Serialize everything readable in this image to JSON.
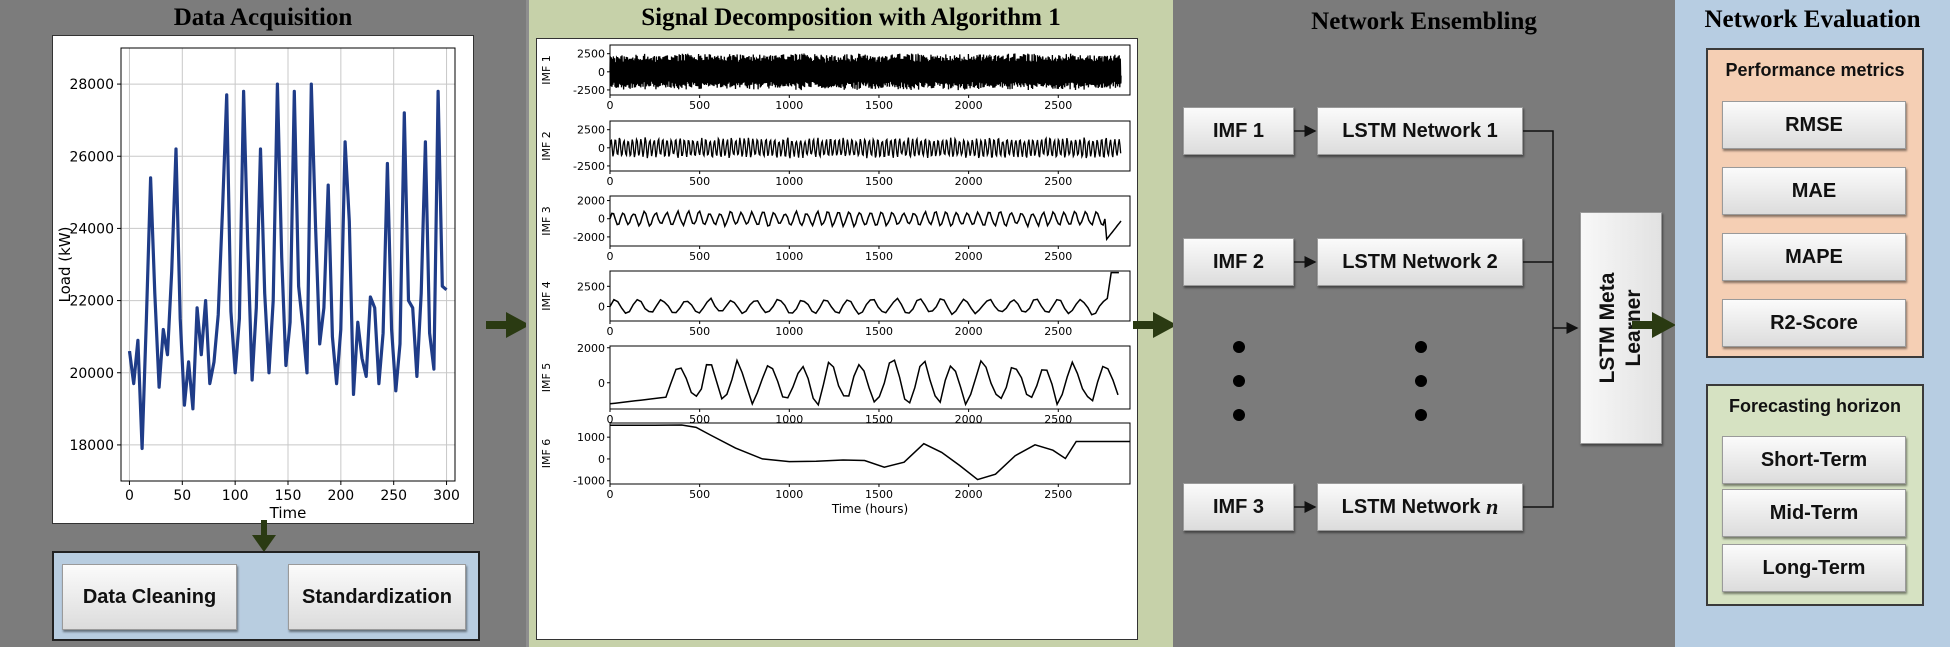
{
  "panels": {
    "acquisition": {
      "title": "Data Acquisition"
    },
    "decomposition": {
      "title": "Signal Decomposition with Algorithm 1"
    },
    "ensembling": {
      "title": "Network Ensembling"
    },
    "evaluation": {
      "title": "Network Evaluation"
    }
  },
  "preprocessing": {
    "cleaning": "Data Cleaning",
    "standardization": "Standardization"
  },
  "ensemble": {
    "imf_labels": [
      "IMF 1",
      "IMF 2",
      "IMF 3"
    ],
    "lstm_labels": [
      "LSTM Network 1",
      "LSTM Network 2",
      "LSTM Network "
    ],
    "lstm_last_suffix": "n",
    "meta_line1": "LSTM Meta",
    "meta_line2": "Learner"
  },
  "evaluation": {
    "metrics_title": "Performance metrics",
    "metrics": [
      "RMSE",
      "MAE",
      "MAPE",
      "R2-Score"
    ],
    "horizon_title": "Forecasting horizon",
    "horizons": [
      "Short-Term",
      "Mid-Term",
      "Long-Term"
    ]
  },
  "colors": {
    "load_line": "#1f3c88",
    "arrow": "#2a3a12"
  },
  "chart_data": [
    {
      "type": "line",
      "xlabel": "Time",
      "ylabel": "Load (kW)",
      "xlim": [
        -8,
        308
      ],
      "ylim": [
        17000,
        29000
      ],
      "xticks": [
        0,
        50,
        100,
        150,
        200,
        250,
        300
      ],
      "yticks": [
        18000,
        20000,
        22000,
        24000,
        26000,
        28000
      ],
      "grid": true,
      "series": [
        {
          "x": [
            0,
            4,
            8,
            12,
            16,
            20,
            24,
            28,
            32,
            36,
            40,
            44,
            48,
            52,
            56,
            60,
            64,
            68,
            72,
            76,
            80,
            84,
            88,
            92,
            96,
            100,
            104,
            108,
            112,
            116,
            120,
            124,
            128,
            132,
            136,
            140,
            144,
            148,
            152,
            156,
            160,
            164,
            168,
            172,
            176,
            180,
            184,
            188,
            192,
            196,
            200,
            204,
            208,
            212,
            216,
            220,
            224,
            228,
            232,
            236,
            240,
            244,
            248,
            252,
            256,
            260,
            264,
            268,
            272,
            276,
            280,
            284,
            288,
            292,
            296,
            300
          ],
          "y": [
            20600,
            19700,
            20900,
            17900,
            21500,
            25400,
            22200,
            19600,
            21200,
            20500,
            22800,
            26200,
            21500,
            19100,
            20300,
            19000,
            21800,
            20500,
            22000,
            19700,
            20300,
            21600,
            24500,
            27700,
            21700,
            20000,
            21500,
            27800,
            23500,
            19800,
            21800,
            26200,
            22200,
            20000,
            22000,
            28000,
            23200,
            20200,
            21400,
            27800,
            22400,
            21300,
            20000,
            28000,
            24100,
            20800,
            21800,
            25200,
            21000,
            19700,
            21200,
            26400,
            24200,
            19400,
            21400,
            20400,
            19900,
            22100,
            21800,
            19700,
            21100,
            25800,
            21200,
            19500,
            20800,
            27200,
            22000,
            21800,
            19900,
            22200,
            26400,
            21100,
            20100,
            27800,
            22400,
            22300
          ]
        }
      ]
    },
    {
      "type": "line",
      "ylabel": "IMF 1",
      "xlim": [
        0,
        2900
      ],
      "ylim": [
        -3200,
        3700
      ],
      "xticks": [
        0,
        500,
        1000,
        1500,
        2000,
        2500
      ],
      "yticks": [
        -2500,
        0,
        2500
      ],
      "series": [
        {
          "name": "",
          "period_hours": 6,
          "amplitude": 2600
        }
      ]
    },
    {
      "type": "line",
      "ylabel": "IMF 2",
      "xlim": [
        0,
        2900
      ],
      "ylim": [
        -3200,
        3700
      ],
      "xticks": [
        0,
        500,
        1000,
        1500,
        2000,
        2500
      ],
      "yticks": [
        -2500,
        0,
        2500
      ],
      "series": [
        {
          "name": "",
          "period_hours": 24,
          "amplitude": 1500
        }
      ]
    },
    {
      "type": "line",
      "ylabel": "IMF 3",
      "xlim": [
        0,
        2900
      ],
      "ylim": [
        -3000,
        2500
      ],
      "xticks": [
        0,
        500,
        1000,
        1500,
        2000,
        2500
      ],
      "yticks": [
        -2000,
        0,
        2000
      ],
      "series": [
        {
          "name": "",
          "period_hours": 60,
          "amplitude": 900
        }
      ]
    },
    {
      "type": "line",
      "ylabel": "IMF 4",
      "xlim": [
        0,
        2900
      ],
      "ylim": [
        -1800,
        4400
      ],
      "xticks": [
        0,
        500,
        1000,
        1500,
        2000,
        2500
      ],
      "yticks": [
        0,
        2500
      ],
      "series": [
        {
          "name": "",
          "period_hours": 130,
          "amplitude": 1100
        }
      ]
    },
    {
      "type": "line",
      "ylabel": "IMF 5",
      "xlim": [
        0,
        2900
      ],
      "ylim": [
        -1500,
        2100
      ],
      "xticks": [
        0,
        500,
        1000,
        1500,
        2000,
        2500
      ],
      "yticks": [
        0,
        2000
      ],
      "series": [
        {
          "name": "",
          "period_hours": 170,
          "amplitude": 1400
        }
      ]
    },
    {
      "type": "line",
      "ylabel": "IMF 6",
      "xlabel": "Time (hours)",
      "xlim": [
        0,
        2900
      ],
      "ylim": [
        -1150,
        1650
      ],
      "xticks": [
        0,
        500,
        1000,
        1500,
        2000,
        2500
      ],
      "yticks": [
        -1000,
        0,
        1000
      ],
      "series": [
        {
          "name": "",
          "x": [
            0,
            250,
            400,
            480,
            560,
            700,
            850,
            1000,
            1150,
            1300,
            1420,
            1530,
            1640,
            1750,
            1850,
            1950,
            2050,
            2150,
            2260,
            2370,
            2470,
            2540,
            2600,
            2900
          ],
          "y": [
            1550,
            1550,
            1560,
            1450,
            1100,
            500,
            0,
            -120,
            -110,
            -50,
            -70,
            -380,
            -150,
            700,
            300,
            -300,
            -950,
            -700,
            150,
            650,
            400,
            20,
            800,
            800
          ]
        }
      ]
    }
  ]
}
